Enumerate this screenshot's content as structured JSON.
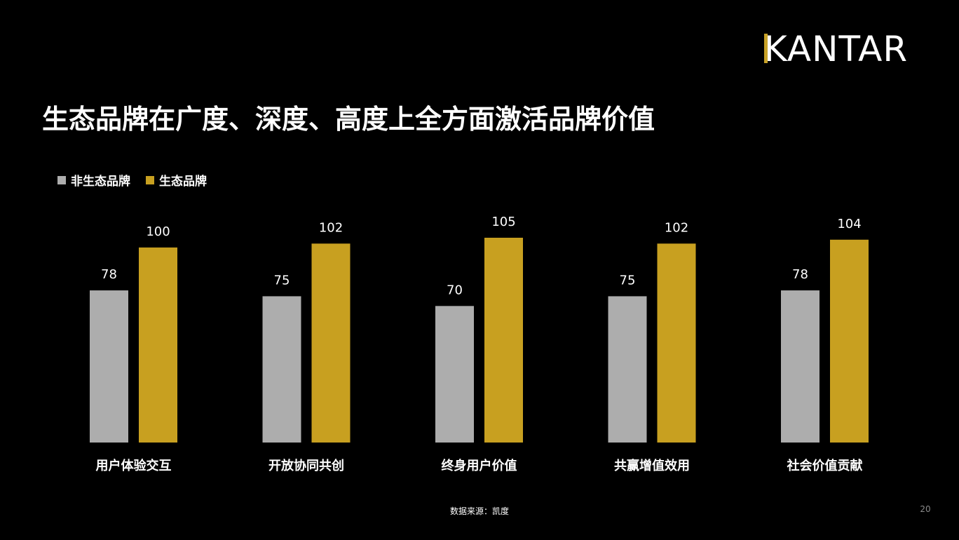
{
  "logo": {
    "text": "KANTAR",
    "accent": "#c8a228"
  },
  "title": "生态品牌在广度、深度、高度上全方面激活品牌价值",
  "footer": {
    "source": "数据来源：凯度",
    "page": "20"
  },
  "chart_data": {
    "type": "bar",
    "categories": [
      "用户体验交互",
      "开放协同共创",
      "终身用户价值",
      "共赢增值效用",
      "社会价值贡献"
    ],
    "series": [
      {
        "name": "非生态品牌",
        "color": "#adadad",
        "values": [
          78,
          75,
          70,
          75,
          78
        ]
      },
      {
        "name": "生态品牌",
        "color": "#c8a020",
        "values": [
          100,
          102,
          105,
          102,
          104
        ]
      }
    ],
    "ylim": [
      0,
      105
    ],
    "legend_position": "top-left",
    "grid": false
  }
}
